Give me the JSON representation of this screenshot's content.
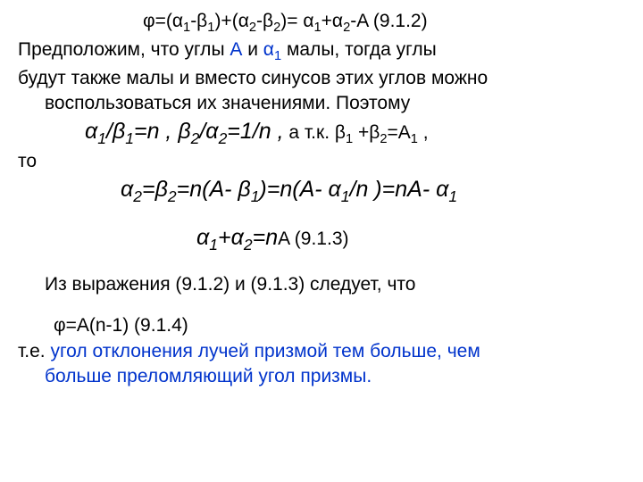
{
  "l1_a": "φ=(α",
  "l1_b": "-β",
  "l1_c": ")+(α",
  "l1_d": "-β",
  "l1_e": ")= α",
  "l1_f": "+α",
  "l1_g": "-A      (9.1.2)",
  "l2_a": "Предположим, что углы ",
  "l2_A": "А",
  "l2_b": " и ",
  "l2_alpha": "α",
  "l2_one": "1",
  "l2_c": " малы, тогда углы",
  "l3": "будут также малы и вместо синусов этих углов можно",
  "l4": "воспользоваться их значениями. Поэтому",
  "l5_a": "α",
  "l5_b": "/β",
  "l5_c": "=n  ",
  "l5_d": ", β",
  "l5_e": "/α",
  "l5_f": "=1/n ,",
  "l5_g": "  а т.к. β",
  "l5_h": " +β",
  "l5_i": "=A",
  "l5_j": " ,",
  "l6": "то",
  "l7_a": "α",
  "l7_b": "=β",
  "l7_c": "=n(A- β",
  "l7_d": ")=n(A- α",
  "l7_e": "/n )=nA- α",
  "l8_a": "α",
  "l8_b": "+α",
  "l8_c": "=n",
  "l8_d": "A           ",
  "l8_e": "(9.1.3)",
  "l9": "Из выражения (9.1.2) и (9.1.3) следует, что",
  "l10": "φ=A(n-1)   (9.1.4)",
  "l11_a": "т.е. ",
  "l11_b": "угол отклонения лучей призмой тем больше, чем",
  "l12": "больше преломляющий угол призмы.",
  "s1": "1",
  "s2": "2"
}
